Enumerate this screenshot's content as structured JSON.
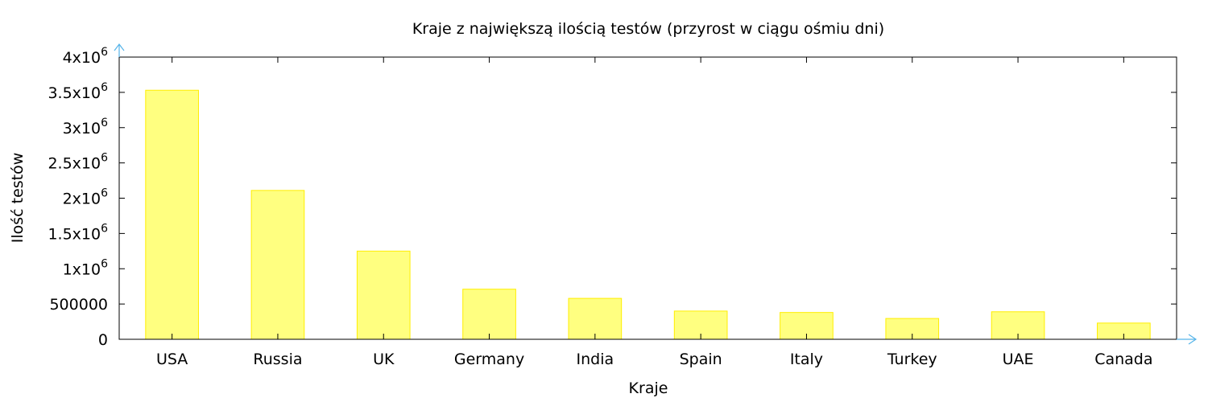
{
  "chart_data": {
    "type": "bar",
    "title": "Kraje z największą ilością testów (przyrost w ciągu ośmiu dni)",
    "xlabel": "Kraje",
    "ylabel": "Ilość testów",
    "categories": [
      "USA",
      "Russia",
      "UK",
      "Germany",
      "India",
      "Spain",
      "Italy",
      "Turkey",
      "UAE",
      "Canada"
    ],
    "series": [
      {
        "values": [
          3530000,
          2110000,
          1250000,
          710000,
          580000,
          400000,
          380000,
          295000,
          390000,
          230000
        ]
      }
    ],
    "ylim": [
      0,
      4000000
    ],
    "yticks": [
      {
        "value": 0,
        "mant": "0",
        "exp": ""
      },
      {
        "value": 500000,
        "mant": "500000",
        "exp": ""
      },
      {
        "value": 1000000,
        "mant": "1x10",
        "exp": "6"
      },
      {
        "value": 1500000,
        "mant": "1.5x10",
        "exp": "6"
      },
      {
        "value": 2000000,
        "mant": "2x10",
        "exp": "6"
      },
      {
        "value": 2500000,
        "mant": "2.5x10",
        "exp": "6"
      },
      {
        "value": 3000000,
        "mant": "3x10",
        "exp": "6"
      },
      {
        "value": 3500000,
        "mant": "3.5x10",
        "exp": "6"
      },
      {
        "value": 4000000,
        "mant": "4x10",
        "exp": "6"
      }
    ],
    "grid": false,
    "bar_fill": "#ffff80",
    "bar_stroke": "#ffee00",
    "arrow_color": "#56b4e9"
  }
}
